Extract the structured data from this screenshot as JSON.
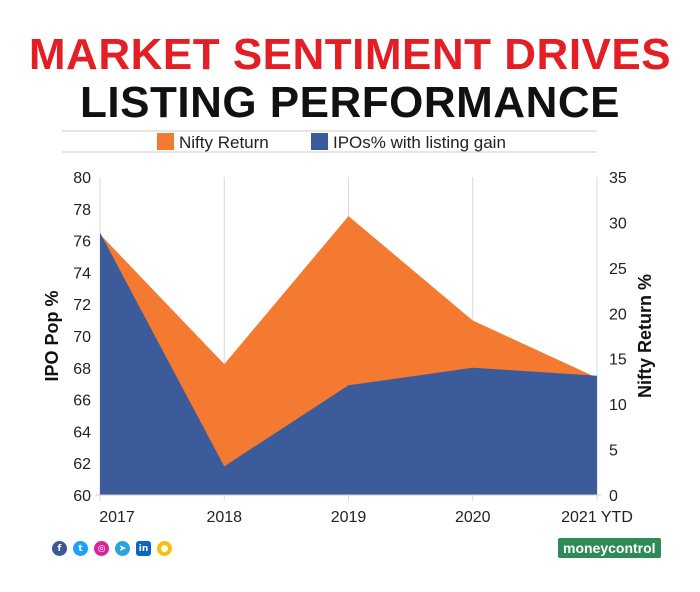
{
  "header": {
    "title_line1": "MARKET SENTIMENT DRIVES",
    "title_line2": "LISTING PERFORMANCE"
  },
  "social_icons": [
    "facebook-icon",
    "twitter-icon",
    "instagram-icon",
    "telegram-icon",
    "linkedin-icon",
    "koo-icon"
  ],
  "brand": {
    "name": "moneycontrol",
    "color": "#2e8b57"
  },
  "chart_data": {
    "type": "area",
    "title": "",
    "categories": [
      "2017",
      "2018",
      "2019",
      "2020",
      "2021 YTD"
    ],
    "series": [
      {
        "name": "Nifty Return",
        "axis": "right",
        "color": "#f37a30",
        "values": [
          28.7,
          14.4,
          30.7,
          19.2,
          12.9
        ]
      },
      {
        "name": "IPOs% with listing gain",
        "axis": "left",
        "color": "#3b5b9a",
        "values": [
          76.5,
          61.8,
          66.9,
          68.0,
          67.5
        ]
      }
    ],
    "ylabel": "IPO Pop %",
    "ylim": [
      60,
      80
    ],
    "yticks": [
      "60",
      "62",
      "64",
      "66",
      "68",
      "70",
      "72",
      "74",
      "76",
      "78",
      "80"
    ],
    "y2label": "Nifty Return %",
    "y2lim": [
      0,
      35
    ],
    "y2ticks": [
      "0",
      "5",
      "10",
      "15",
      "20",
      "25",
      "30",
      "35"
    ],
    "legend_position": "top",
    "grid": true
  }
}
